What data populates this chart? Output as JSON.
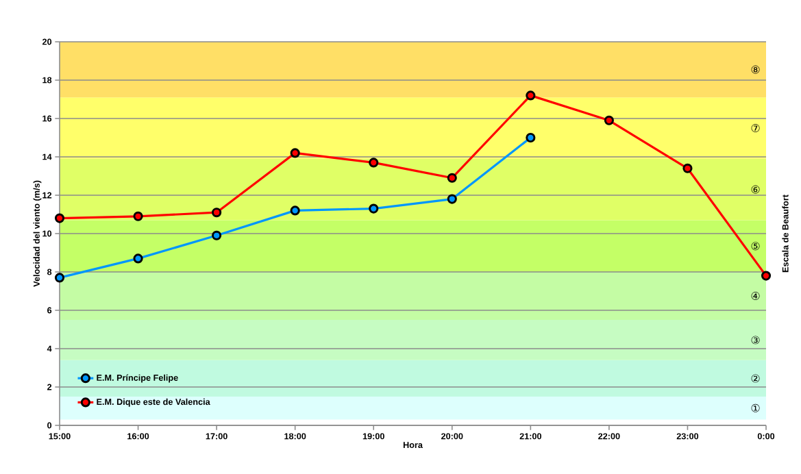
{
  "chart_data": {
    "type": "line",
    "xlabel": "Hora",
    "ylabel": "Velocidad del viento (m/s)",
    "y2label": "Escala de Beaufort",
    "categories": [
      "15:00",
      "16:00",
      "17:00",
      "18:00",
      "19:00",
      "20:00",
      "21:00",
      "22:00",
      "23:00",
      "0:00"
    ],
    "series": [
      {
        "name": "E.M. Príncipe Felipe",
        "color": "#0096ff",
        "values": [
          7.7,
          8.7,
          9.9,
          11.2,
          11.3,
          11.8,
          15.0,
          null,
          null,
          null
        ]
      },
      {
        "name": "E.M. Dique este de Valencia",
        "color": "#ff0000",
        "values": [
          10.8,
          10.9,
          11.1,
          14.2,
          13.7,
          12.9,
          17.2,
          15.9,
          13.4,
          7.8
        ]
      }
    ],
    "ylim": [
      0,
      20
    ],
    "yticks": [
      0,
      2,
      4,
      6,
      8,
      10,
      12,
      14,
      16,
      18,
      20
    ],
    "grid": "y",
    "legend": "bottom left",
    "marker": "circle",
    "bands": [
      {
        "axis": "y",
        "from": 0.3,
        "to": 1.5,
        "label": "①",
        "color": "#ddfffd"
      },
      {
        "axis": "y",
        "from": 1.5,
        "to": 3.4,
        "label": "②",
        "color": "#c0fae0"
      },
      {
        "axis": "y",
        "from": 3.4,
        "to": 5.5,
        "label": "③",
        "color": "#c6fcc2"
      },
      {
        "axis": "y",
        "from": 5.5,
        "to": 8.0,
        "label": "④",
        "color": "#c4fca4"
      },
      {
        "axis": "y",
        "from": 8.0,
        "to": 10.7,
        "label": "⑤",
        "color": "#c4ff66"
      },
      {
        "axis": "y",
        "from": 10.7,
        "to": 13.9,
        "label": "⑥",
        "color": "#e0ff66"
      },
      {
        "axis": "y",
        "from": 13.9,
        "to": 17.1,
        "label": "⑦",
        "color": "#ffff6a"
      },
      {
        "axis": "y",
        "from": 17.1,
        "to": 20,
        "label": "⑧",
        "color": "#ffdf66"
      }
    ]
  }
}
